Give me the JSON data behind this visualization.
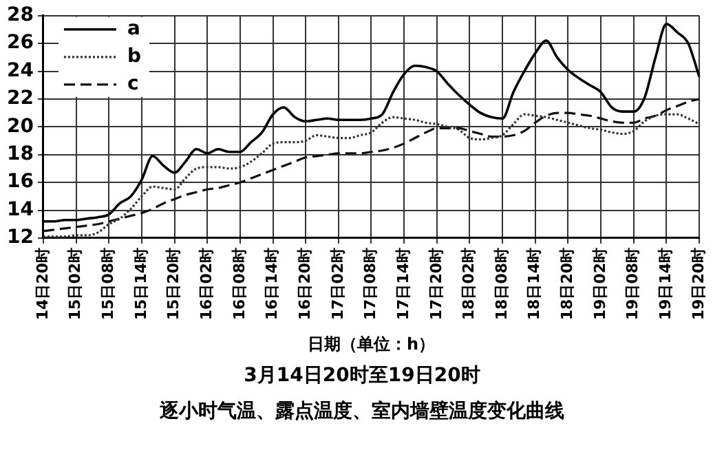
{
  "chart_data": {
    "type": "line",
    "title": "3月14日20时至19日20时",
    "subtitle": "逐小时气温、露点温度、室内墙壁温度变化曲线",
    "xlabel": "日期（单位：h）",
    "categories": [
      "14日20时",
      null,
      null,
      "15日02时",
      null,
      null,
      "15日08时",
      null,
      null,
      "15日14时",
      null,
      null,
      "15日20时",
      null,
      null,
      "16日02时",
      null,
      null,
      "16日08时",
      null,
      null,
      "16日14时",
      null,
      null,
      "16日20时",
      null,
      null,
      "17日02时",
      null,
      null,
      "17日08时",
      null,
      null,
      "17日14时",
      null,
      null,
      "17日20时",
      null,
      null,
      "18日02时",
      null,
      null,
      "18日08时",
      null,
      null,
      "18日14时",
      null,
      null,
      "18日20时",
      null,
      null,
      "19日02时",
      null,
      null,
      "19日08时",
      null,
      null,
      "19日14时",
      null,
      null,
      "19日20时"
    ],
    "ylim": [
      12,
      28
    ],
    "yticks": [
      12,
      14,
      16,
      18,
      20,
      22,
      24,
      26,
      28
    ],
    "grid": true,
    "legend": "top left",
    "marker": "none",
    "series": [
      {
        "name": "a",
        "color": "#000000",
        "line_style": "solid",
        "values": [
          13.2,
          13.2,
          13.3,
          13.3,
          13.4,
          13.5,
          13.7,
          14.5,
          15.0,
          16.2,
          17.9,
          17.2,
          16.7,
          17.5,
          18.4,
          18.1,
          18.4,
          18.2,
          18.2,
          18.9,
          19.6,
          20.9,
          21.4,
          20.7,
          20.4,
          20.5,
          20.6,
          20.5,
          20.5,
          20.5,
          20.6,
          20.9,
          22.5,
          23.8,
          24.4,
          24.3,
          24.0,
          23.1,
          22.3,
          21.6,
          21.0,
          20.7,
          20.6,
          22.5,
          24.0,
          25.3,
          26.2,
          25.0,
          24.1,
          23.5,
          23.0,
          22.5,
          21.4,
          21.1,
          21.1,
          22.1,
          25.0,
          27.4,
          26.8,
          26.0,
          23.6
        ]
      },
      {
        "name": "b",
        "color": "#333333",
        "line_style": "dotted",
        "values": [
          12.1,
          12.1,
          12.1,
          12.2,
          12.2,
          12.4,
          13.0,
          13.4,
          14.1,
          15.0,
          15.7,
          15.6,
          15.5,
          16.3,
          17.0,
          17.1,
          17.1,
          17.0,
          17.1,
          17.5,
          18.1,
          18.8,
          18.9,
          18.9,
          19.0,
          19.4,
          19.3,
          19.2,
          19.2,
          19.4,
          19.6,
          20.3,
          20.7,
          20.6,
          20.5,
          20.3,
          20.2,
          20.0,
          19.8,
          19.2,
          19.1,
          19.2,
          19.4,
          20.2,
          20.9,
          20.8,
          20.7,
          20.5,
          20.3,
          20.1,
          19.9,
          19.8,
          19.6,
          19.5,
          19.7,
          20.4,
          20.8,
          20.9,
          20.9,
          20.6,
          20.2
        ]
      },
      {
        "name": "c",
        "color": "#111111",
        "line_style": "dashed",
        "values": [
          12.5,
          12.6,
          12.7,
          12.8,
          12.9,
          13.0,
          13.2,
          13.4,
          13.6,
          13.8,
          14.1,
          14.5,
          14.8,
          15.1,
          15.3,
          15.5,
          15.6,
          15.8,
          16.0,
          16.3,
          16.6,
          16.9,
          17.2,
          17.5,
          17.8,
          17.9,
          18.0,
          18.1,
          18.1,
          18.1,
          18.2,
          18.3,
          18.5,
          18.8,
          19.2,
          19.6,
          19.9,
          19.9,
          19.9,
          19.7,
          19.5,
          19.3,
          19.3,
          19.4,
          19.7,
          20.3,
          20.8,
          21.0,
          21.0,
          20.9,
          20.8,
          20.6,
          20.4,
          20.3,
          20.3,
          20.6,
          20.8,
          21.2,
          21.5,
          21.8,
          22.0
        ]
      }
    ]
  }
}
